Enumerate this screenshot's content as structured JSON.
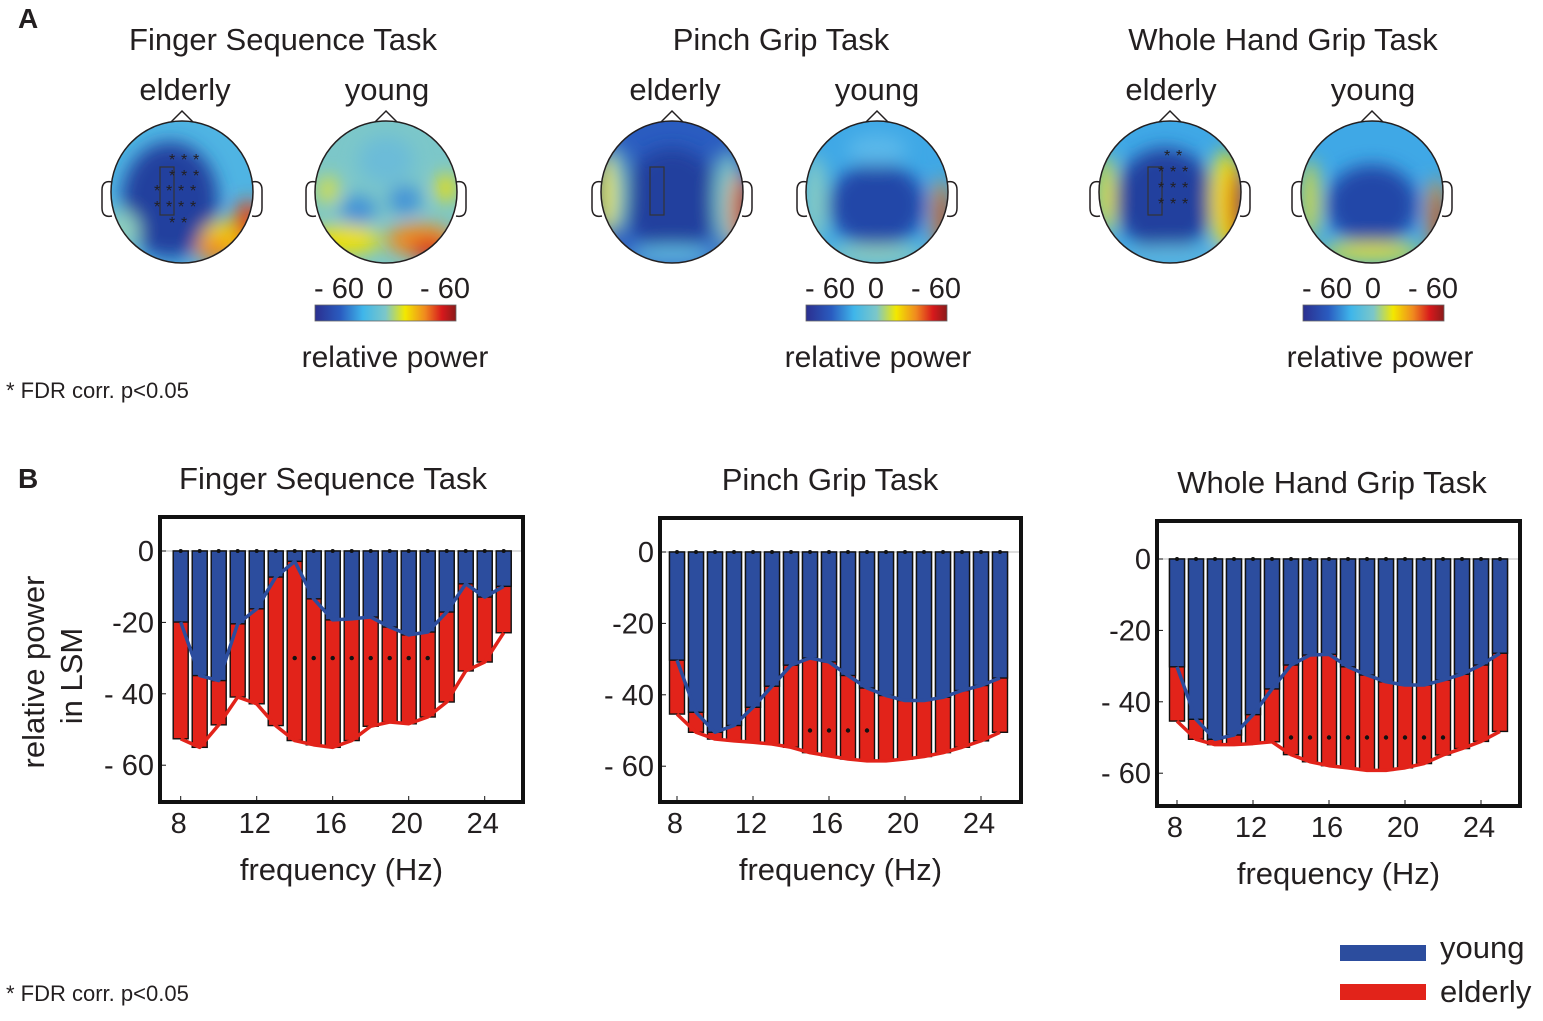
{
  "panel_a": {
    "label": "A",
    "footnote": "* FDR corr. p<0.05",
    "tasks": [
      {
        "title": "Finger Sequence Task",
        "groups": [
          "elderly",
          "young"
        ],
        "significance_marker": "*"
      },
      {
        "title": "Pinch Grip Task",
        "groups": [
          "elderly",
          "young"
        ]
      },
      {
        "title": "Whole Hand Grip Task",
        "groups": [
          "elderly",
          "young"
        ],
        "significance_marker": "*"
      }
    ],
    "colorbar": {
      "ticks": [
        "- 60",
        "0",
        "- 60"
      ],
      "label": "relative power",
      "colors": [
        "#2b2f8f",
        "#2a5cc0",
        "#3fb6ea",
        "#7cc7c9",
        "#f2e800",
        "#f08a1f",
        "#d7191c",
        "#8b1a1a"
      ]
    }
  },
  "panel_b": {
    "label": "B",
    "footnote": "* FDR corr. p<0.05",
    "ylabel_line1": "relative power",
    "ylabel_line2": "in LSM",
    "legend": [
      {
        "label": "young",
        "color": "#2c4d9e"
      },
      {
        "label": "elderly",
        "color": "#e2231a"
      }
    ]
  },
  "chart_data": [
    {
      "type": "bar",
      "title": "Finger Sequence Task",
      "xlabel": "frequency (Hz)",
      "ylabel": "relative power in LSM",
      "x": [
        8,
        9,
        10,
        11,
        12,
        13,
        14,
        15,
        16,
        17,
        18,
        19,
        20,
        21,
        22,
        23,
        24,
        25
      ],
      "x_ticks": [
        "8",
        "12",
        "16",
        "20",
        "24"
      ],
      "y_ticks": [
        "0",
        "-20",
        "- 40",
        "- 60"
      ],
      "ylim": [
        -70,
        10
      ],
      "series": [
        {
          "name": "young",
          "values": [
            -19.9,
            -34.9,
            -36.3,
            -20.4,
            -16.2,
            -7.3,
            -2.9,
            -13.4,
            -19.3,
            -19.0,
            -18.5,
            -21.3,
            -23.5,
            -22.7,
            -17.1,
            -9.2,
            -12.9,
            -9.9
          ]
        },
        {
          "name": "elderly",
          "values": [
            -52.6,
            -55.0,
            -48.7,
            -40.9,
            -42.8,
            -48.9,
            -53.1,
            -54.3,
            -55.0,
            -53.1,
            -49.1,
            -47.9,
            -48.4,
            -46.5,
            -42.3,
            -33.6,
            -31.1,
            -22.9
          ]
        }
      ],
      "significant_hz": [
        14,
        15,
        16,
        17,
        18,
        19,
        20,
        21
      ],
      "significance_level": -30
    },
    {
      "type": "bar",
      "title": "Pinch Grip Task",
      "xlabel": "frequency (Hz)",
      "x": [
        8,
        9,
        10,
        11,
        12,
        13,
        14,
        15,
        16,
        17,
        18,
        19,
        20,
        21,
        22,
        23,
        24,
        25
      ],
      "x_ticks": [
        "8",
        "12",
        "16",
        "20",
        "24"
      ],
      "y_ticks": [
        "0",
        "-20",
        "- 40",
        "- 60"
      ],
      "ylim": [
        -70,
        10
      ],
      "series": [
        {
          "name": "young",
          "values": [
            -30.3,
            -44.9,
            -50.5,
            -48.6,
            -43.5,
            -37.6,
            -31.7,
            -29.7,
            -30.8,
            -34.6,
            -38.1,
            -40.2,
            -41.6,
            -41.6,
            -40.7,
            -38.8,
            -37.4,
            -35.3
          ]
        },
        {
          "name": "elderly",
          "values": [
            -45.4,
            -50.5,
            -52.4,
            -52.9,
            -53.3,
            -53.8,
            -54.7,
            -56.2,
            -57.1,
            -58.0,
            -58.5,
            -58.5,
            -58.0,
            -57.3,
            -56.2,
            -54.7,
            -52.9,
            -50.5
          ]
        }
      ],
      "significant_hz": [
        15,
        16,
        17,
        18
      ],
      "significance_level": -50
    },
    {
      "type": "bar",
      "title": "Whole Hand Grip Task",
      "xlabel": "frequency (Hz)",
      "x": [
        8,
        9,
        10,
        11,
        12,
        13,
        14,
        15,
        16,
        17,
        18,
        19,
        20,
        21,
        22,
        23,
        24,
        25
      ],
      "x_ticks": [
        "8",
        "12",
        "16",
        "20",
        "24"
      ],
      "y_ticks": [
        "0",
        "-20",
        "- 40",
        "- 60"
      ],
      "ylim": [
        -70,
        10
      ],
      "series": [
        {
          "name": "young",
          "values": [
            -30.2,
            -44.9,
            -50.5,
            -49.3,
            -43.6,
            -36.4,
            -29.7,
            -26.9,
            -26.7,
            -30.2,
            -32.5,
            -34.4,
            -35.3,
            -35.3,
            -33.9,
            -32.3,
            -29.7,
            -26.4
          ]
        },
        {
          "name": "elderly",
          "values": [
            -45.4,
            -50.5,
            -52.0,
            -52.0,
            -51.7,
            -51.2,
            -54.8,
            -56.8,
            -57.9,
            -58.5,
            -59.2,
            -59.2,
            -58.5,
            -57.3,
            -54.9,
            -53.1,
            -51.1,
            -48.3
          ]
        }
      ],
      "significant_hz": [
        14,
        15,
        16,
        17,
        18,
        19,
        20,
        21,
        22
      ],
      "significance_level": -50
    }
  ]
}
